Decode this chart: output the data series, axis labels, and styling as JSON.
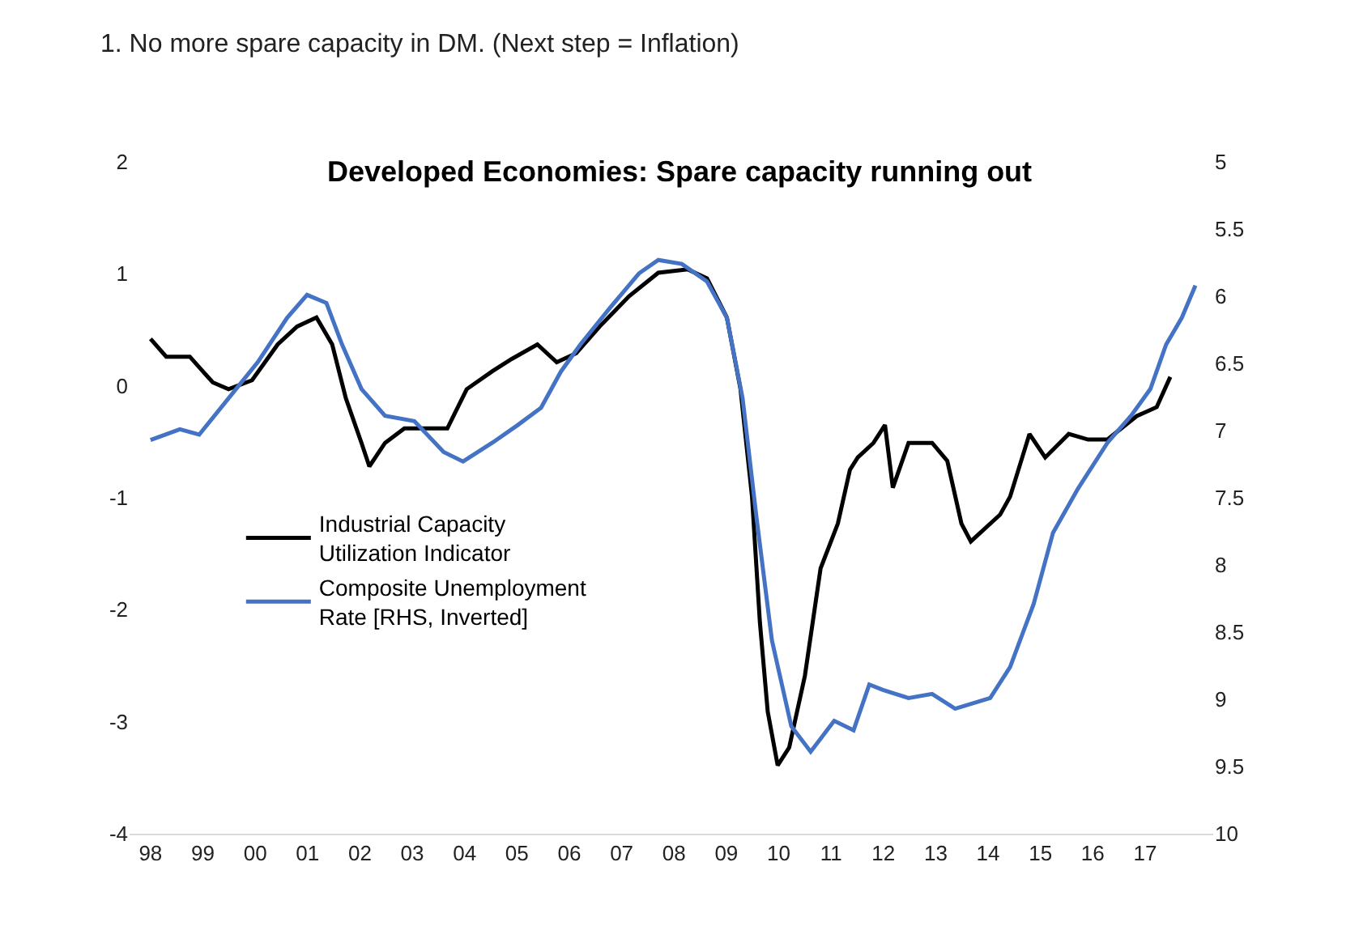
{
  "chart_data": {
    "type": "line",
    "title": "Developed Economies: Spare capacity running out",
    "subtitle": "1. No more spare capacity in DM. (Next step = Inflation)",
    "xticks": [
      {
        "value": 1998,
        "label": "98"
      },
      {
        "value": 1999,
        "label": "99"
      },
      {
        "value": 2000,
        "label": "00"
      },
      {
        "value": 2001,
        "label": "01"
      },
      {
        "value": 2002,
        "label": "02"
      },
      {
        "value": 2003,
        "label": "03"
      },
      {
        "value": 2004,
        "label": "04"
      },
      {
        "value": 2005,
        "label": "05"
      },
      {
        "value": 2006,
        "label": "06"
      },
      {
        "value": 2007,
        "label": "07"
      },
      {
        "value": 2008,
        "label": "08"
      },
      {
        "value": 2009,
        "label": "09"
      },
      {
        "value": 2010,
        "label": "10"
      },
      {
        "value": 2011,
        "label": "11"
      },
      {
        "value": 2012,
        "label": "12"
      },
      {
        "value": 2013,
        "label": "13"
      },
      {
        "value": 2014,
        "label": "14"
      },
      {
        "value": 2015,
        "label": "15"
      },
      {
        "value": 2016,
        "label": "16"
      },
      {
        "value": 2017,
        "label": "17"
      }
    ],
    "xlim": [
      1997.6,
      2018.3
    ],
    "ylim": [
      -4,
      2
    ],
    "yticks": [
      -4,
      -3,
      -2,
      -1,
      0,
      1,
      2
    ],
    "y2lim": [
      10,
      5
    ],
    "y2ticks": [
      5,
      5.5,
      6,
      6.5,
      7,
      7.5,
      8,
      8.5,
      9,
      9.5,
      10
    ],
    "legend": "left",
    "marker": "none",
    "line_style": "solid",
    "series": [
      {
        "name": "Industrial Capacity Utilization Indicator",
        "color": "#000000",
        "x": [
          1998.0,
          1998.3,
          1998.75,
          1999.19,
          1999.49,
          1999.94,
          2000.43,
          2000.8,
          2001.17,
          2001.47,
          2001.73,
          2002.03,
          2002.18,
          2002.48,
          2002.85,
          2003.41,
          2003.67,
          2004.04,
          2004.53,
          2004.9,
          2005.39,
          2005.76,
          2006.13,
          2006.58,
          2007.14,
          2007.7,
          2008.26,
          2008.63,
          2009.01,
          2009.27,
          2009.49,
          2009.64,
          2009.79,
          2009.98,
          2010.2,
          2010.5,
          2010.8,
          2011.13,
          2011.36,
          2011.51,
          2011.81,
          2012.03,
          2012.18,
          2012.48,
          2012.93,
          2013.22,
          2013.49,
          2013.67,
          2014.23,
          2014.42,
          2014.79,
          2015.09,
          2015.54,
          2015.91,
          2016.28,
          2016.84,
          2017.22,
          2017.48
        ],
        "values": [
          0.42,
          0.26,
          0.26,
          0.03,
          -0.03,
          0.05,
          0.37,
          0.53,
          0.61,
          0.37,
          -0.11,
          -0.51,
          -0.72,
          -0.51,
          -0.38,
          -0.38,
          -0.38,
          -0.03,
          0.13,
          0.24,
          0.37,
          0.21,
          0.29,
          0.53,
          0.8,
          1.01,
          1.04,
          0.96,
          0.61,
          -0.03,
          -0.99,
          -2.11,
          -2.91,
          -3.39,
          -3.23,
          -2.59,
          -1.63,
          -1.23,
          -0.75,
          -0.64,
          -0.51,
          -0.35,
          -0.91,
          -0.51,
          -0.51,
          -0.67,
          -1.23,
          -1.39,
          -1.15,
          -0.99,
          -0.43,
          -0.64,
          -0.43,
          -0.48,
          -0.48,
          -0.27,
          -0.19,
          0.08
        ]
      },
      {
        "name": "Composite Unemployment Rate [RHS, Inverted]",
        "color": "#4472c4",
        "axis": "y2",
        "x": [
          1998.0,
          1998.56,
          1998.93,
          1999.49,
          2000.05,
          2000.61,
          2000.99,
          2001.36,
          2001.66,
          2002.03,
          2002.48,
          2003.04,
          2003.6,
          2003.97,
          2004.53,
          2005.01,
          2005.46,
          2005.84,
          2006.21,
          2006.77,
          2007.33,
          2007.7,
          2008.15,
          2008.63,
          2009.01,
          2009.31,
          2009.57,
          2009.87,
          2010.24,
          2010.61,
          2011.06,
          2011.43,
          2011.73,
          2011.99,
          2012.48,
          2012.93,
          2013.37,
          2014.04,
          2014.42,
          2014.87,
          2015.24,
          2015.72,
          2016.28,
          2016.73,
          2017.1,
          2017.4,
          2017.7,
          2017.96
        ],
        "values": [
          7.07,
          6.99,
          7.03,
          6.76,
          6.49,
          6.16,
          5.99,
          6.05,
          6.36,
          6.69,
          6.89,
          6.93,
          7.16,
          7.23,
          7.09,
          6.96,
          6.83,
          6.56,
          6.36,
          6.09,
          5.83,
          5.73,
          5.76,
          5.89,
          6.16,
          6.76,
          7.63,
          8.56,
          9.2,
          9.39,
          9.16,
          9.23,
          8.89,
          8.93,
          8.99,
          8.96,
          9.07,
          8.99,
          8.76,
          8.29,
          7.76,
          7.43,
          7.09,
          6.89,
          6.69,
          6.36,
          6.16,
          5.92
        ]
      }
    ]
  }
}
